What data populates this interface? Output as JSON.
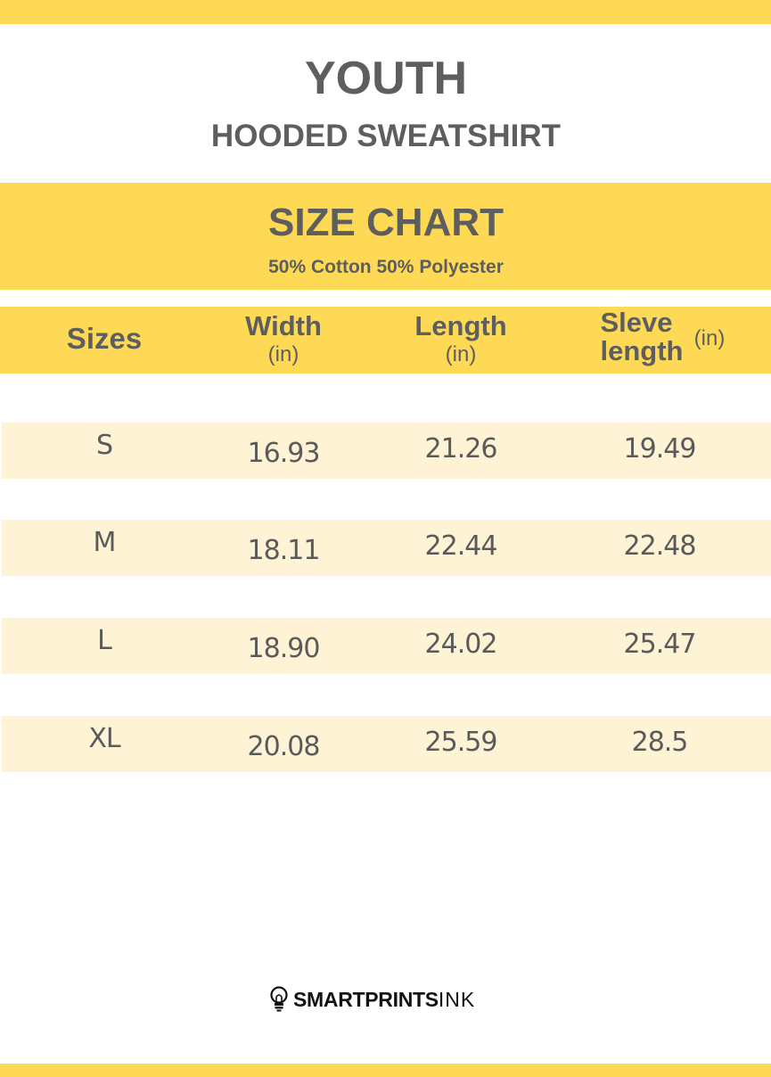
{
  "title": "YOUTH",
  "subtitle": "HOODED SWEATSHIRT",
  "chart_title": "SIZE CHART",
  "material": "50% Cotton 50% Polyester",
  "headers": {
    "sizes": "Sizes",
    "width": "Width",
    "length": "Length",
    "sleeve_line1": "Sleve",
    "sleeve_line2": "length",
    "unit": "(in)"
  },
  "rows": [
    {
      "size": "S",
      "width": "16.93",
      "length": "21.26",
      "sleeve": "19.49"
    },
    {
      "size": "M",
      "width": "18.11",
      "length": "22.44",
      "sleeve": "22.48"
    },
    {
      "size": "L",
      "width": "18.90",
      "length": "24.02",
      "sleeve": "25.47"
    },
    {
      "size": "XL",
      "width": "20.08",
      "length": "25.59",
      "sleeve": "28.5"
    }
  ],
  "brand": {
    "bold": "SMARTPRINTS",
    "light": "INK",
    "icon": "lightbulb-icon"
  },
  "colors": {
    "accent": "#fed956",
    "row": "#fef3d4",
    "text": "#5e5e5e"
  }
}
